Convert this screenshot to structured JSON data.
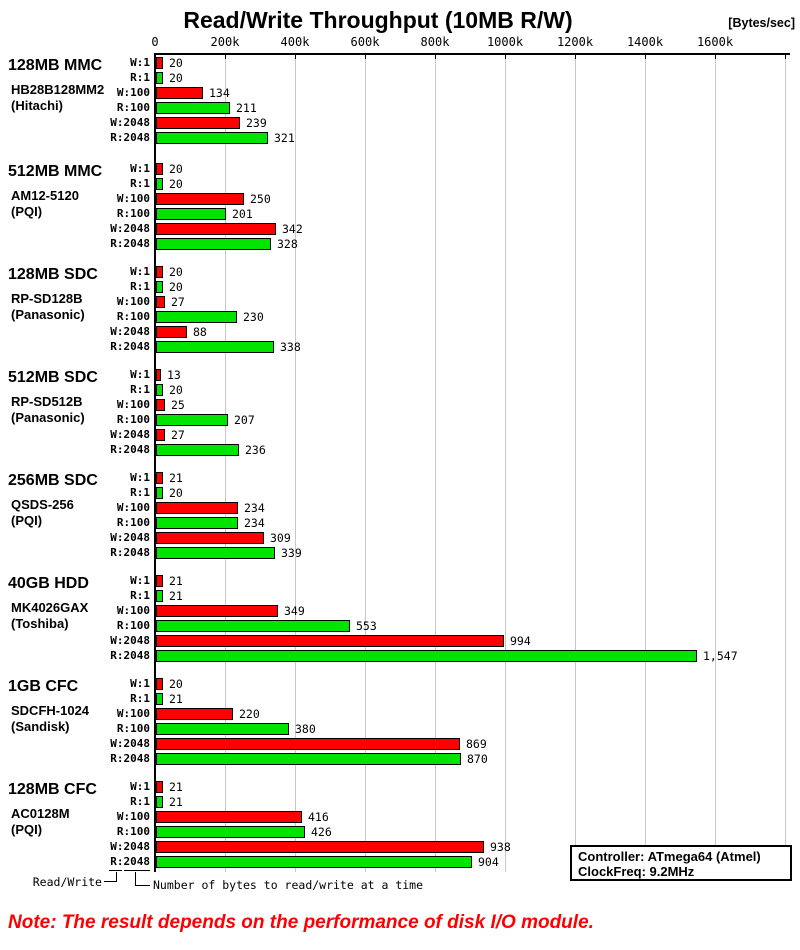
{
  "title": "Read/Write Throughput (10MB R/W)",
  "unit_label": "[Bytes/sec]",
  "colors": {
    "write_bar": "#FF0000",
    "read_bar": "#00E400",
    "grid_line": "#C8C8C8",
    "axis": "#000000",
    "note_text": "#FF0000"
  },
  "annotations": {
    "read_write": "Read/Write",
    "bytes_at_a_time": "Number of bytes to read/write at a time"
  },
  "legend_box": {
    "controller": "Controller: ATmega64 (Atmel)",
    "clock": "ClockFreq: 9.2MHz"
  },
  "footnote": "Note: The result depends on the performance of disk I/O module.",
  "chart_data": {
    "type": "bar",
    "orientation": "horizontal",
    "title": "Read/Write Throughput (10MB R/W)",
    "value_unit": "Bytes/sec",
    "values_note": "bar values are thousands of Bytes/sec; bar data labels shown as-is",
    "axis_tick_labels": [
      "0",
      "200k",
      "400k",
      "600k",
      "800k",
      "1000k",
      "1200k",
      "1400k",
      "1600k"
    ],
    "axis_tick_values_k": [
      0,
      200,
      400,
      600,
      800,
      1000,
      1200,
      1400,
      1600
    ],
    "axis_max_k": 1800,
    "grid": true,
    "legend_position": "none",
    "row_labels": [
      "W:1",
      "R:1",
      "W:100",
      "R:100",
      "W:2048",
      "R:2048"
    ],
    "series_colors": {
      "write": "#FF0000",
      "read": "#00E400"
    },
    "groups": [
      {
        "name": "128MB MMC",
        "model": "HB28B128MM2",
        "maker": "(Hitachi)",
        "values": [
          20,
          20,
          134,
          211,
          239,
          321
        ],
        "labels": [
          "20",
          "20",
          "134",
          "211",
          "239",
          "321"
        ]
      },
      {
        "name": "512MB MMC",
        "model": "AM12-5120",
        "maker": "(PQI)",
        "values": [
          20,
          20,
          250,
          201,
          342,
          328
        ],
        "labels": [
          "20",
          "20",
          "250",
          "201",
          "342",
          "328"
        ]
      },
      {
        "name": "128MB SDC",
        "model": "RP-SD128B",
        "maker": "(Panasonic)",
        "values": [
          20,
          20,
          27,
          230,
          88,
          338
        ],
        "labels": [
          "20",
          "20",
          "27",
          "230",
          "88",
          "338"
        ]
      },
      {
        "name": "512MB SDC",
        "model": "RP-SD512B",
        "maker": "(Panasonic)",
        "values": [
          13,
          20,
          25,
          207,
          27,
          236
        ],
        "labels": [
          "13",
          "20",
          "25",
          "207",
          "27",
          "236"
        ]
      },
      {
        "name": "256MB SDC",
        "model": "QSDS-256",
        "maker": "(PQI)",
        "values": [
          21,
          20,
          234,
          234,
          309,
          339
        ],
        "labels": [
          "21",
          "20",
          "234",
          "234",
          "309",
          "339"
        ]
      },
      {
        "name": "40GB HDD",
        "model": "MK4026GAX",
        "maker": "(Toshiba)",
        "values": [
          21,
          21,
          349,
          553,
          994,
          1547
        ],
        "labels": [
          "21",
          "21",
          "349",
          "553",
          "994",
          "1,547"
        ]
      },
      {
        "name": "1GB CFC",
        "model": "SDCFH-1024",
        "maker": "(Sandisk)",
        "values": [
          20,
          21,
          220,
          380,
          869,
          870
        ],
        "labels": [
          "20",
          "21",
          "220",
          "380",
          "869",
          "870"
        ]
      },
      {
        "name": "128MB CFC",
        "model": "AC0128M",
        "maker": "(PQI)",
        "values": [
          21,
          21,
          416,
          426,
          938,
          904
        ],
        "labels": [
          "21",
          "21",
          "416",
          "426",
          "938",
          "904"
        ]
      }
    ]
  }
}
